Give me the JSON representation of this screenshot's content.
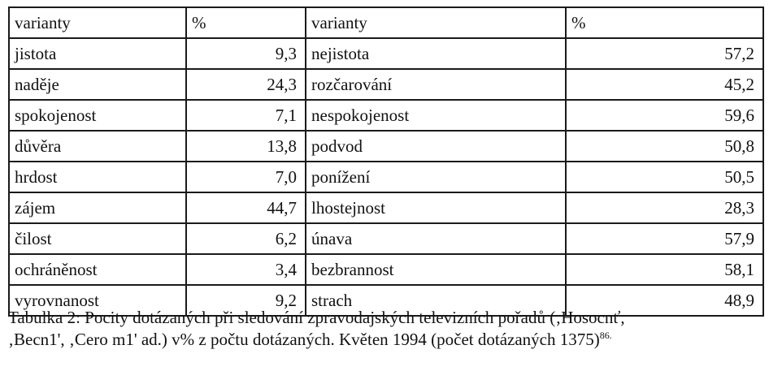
{
  "table": {
    "headers": {
      "left_name": "varianty",
      "left_value": "%",
      "right_name": "varianty",
      "right_value": "%"
    },
    "rows": [
      {
        "left_name": "jistota",
        "left_value": "9,3",
        "right_name": "nejistota",
        "right_value": "57,2"
      },
      {
        "left_name": "naděje",
        "left_value": "24,3",
        "right_name": "rozčarování",
        "right_value": "45,2"
      },
      {
        "left_name": "spokojenost",
        "left_value": "7,1",
        "right_name": "nespokojenost",
        "right_value": "59,6"
      },
      {
        "left_name": "důvěra",
        "left_value": "13,8",
        "right_name": "podvod",
        "right_value": "50,8"
      },
      {
        "left_name": "hrdost",
        "left_value": "7,0",
        "right_name": "ponížení",
        "right_value": "50,5"
      },
      {
        "left_name": "zájem",
        "left_value": "44,7",
        "right_name": "lhostejnost",
        "right_value": "28,3"
      },
      {
        "left_name": "čilost",
        "left_value": "6,2",
        "right_name": "únava",
        "right_value": "57,9"
      },
      {
        "left_name": "ochráněnost",
        "left_value": "3,4",
        "right_name": "bezbrannost",
        "right_value": "58,1"
      },
      {
        "left_name": "vyrovnanost",
        "left_value": "9,2",
        "right_name": "strach",
        "right_value": "48,9"
      }
    ]
  },
  "caption": {
    "line1": "Tabulka 2: Pocity dotázaných při sledování zpravodajských televizních pořadů (‚Hosocnť,",
    "line2": "‚Becn1',  ‚Cero m1'  ad.) v%  z počtu dotázaných. Květen  1994  (počet dotázaných  1375)",
    "footnote": "86."
  }
}
